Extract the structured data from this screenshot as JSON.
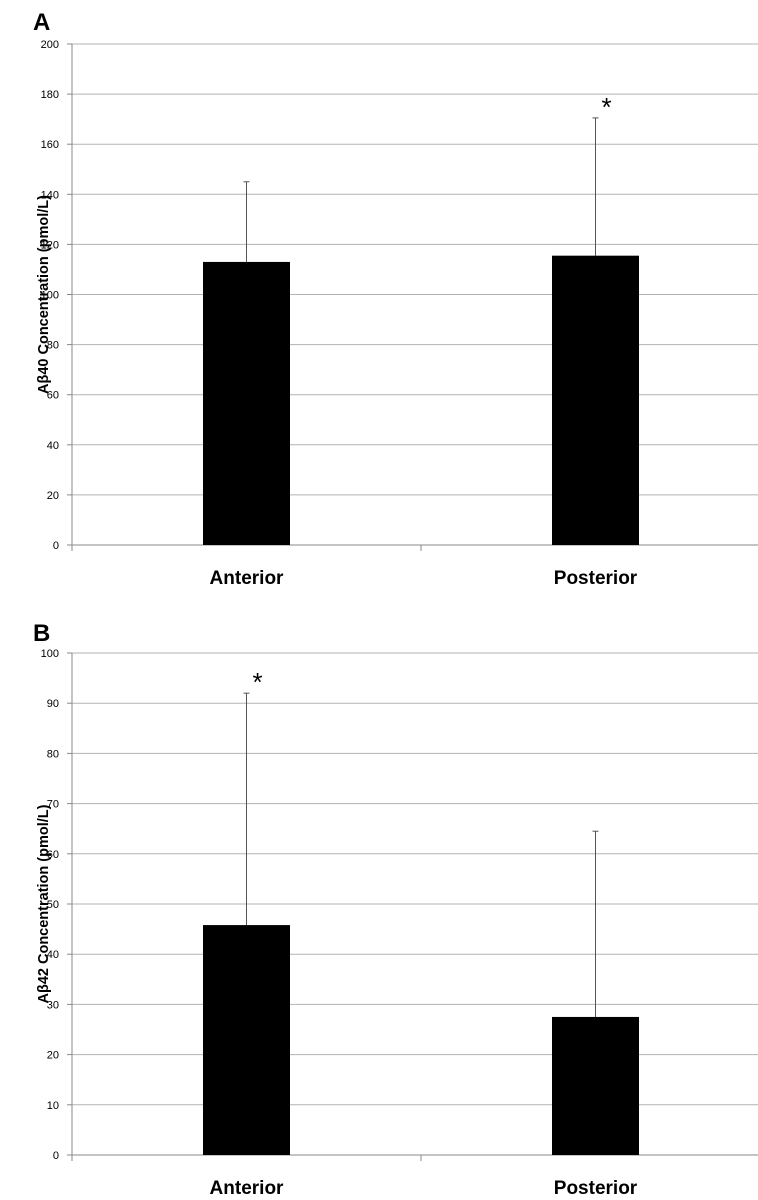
{
  "chart_data": [
    {
      "panel": "A",
      "type": "bar",
      "categories": [
        "Anterior",
        "Posterior"
      ],
      "values": [
        113,
        115.5
      ],
      "error_upper": [
        145,
        170.5
      ],
      "annotations": [
        "",
        "*"
      ],
      "xlabel": "",
      "ylabel": "Aβ40 Concentration (pmol/L)",
      "ylim": [
        0,
        200
      ],
      "yticks": [
        0,
        20,
        40,
        60,
        80,
        100,
        120,
        140,
        160,
        180,
        200
      ],
      "grid": true,
      "bar_color": "#000000",
      "grid_color": "#b3b3b3"
    },
    {
      "panel": "B",
      "type": "bar",
      "categories": [
        "Anterior",
        "Posterior"
      ],
      "values": [
        45.8,
        27.5
      ],
      "error_upper": [
        92,
        64.5
      ],
      "annotations": [
        "*",
        ""
      ],
      "xlabel": "",
      "ylabel": "Aβ42 Concentration (pmol/L)",
      "ylim": [
        0,
        100
      ],
      "yticks": [
        0,
        10,
        20,
        30,
        40,
        50,
        60,
        70,
        80,
        90,
        100
      ],
      "grid": true,
      "bar_color": "#000000",
      "grid_color": "#b3b3b3"
    }
  ]
}
